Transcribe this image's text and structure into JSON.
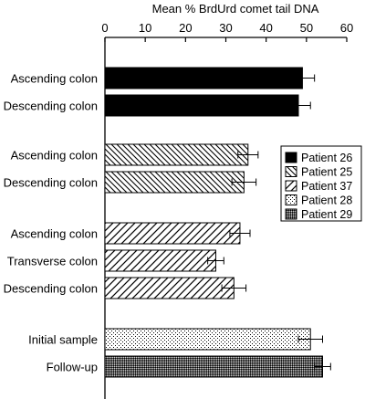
{
  "chart_data": {
    "type": "bar",
    "orientation": "horizontal",
    "title": "Mean % BrdUrd comet tail DNA",
    "xlim": [
      0,
      60
    ],
    "xticks": [
      0,
      10,
      20,
      30,
      40,
      50,
      60
    ],
    "x_axis_position": "top",
    "grid": false,
    "legend_position": "right",
    "series": [
      {
        "name": "Patient 26",
        "pattern": "solid-black"
      },
      {
        "name": "Patient 25",
        "pattern": "diagonal-backslash"
      },
      {
        "name": "Patient 37",
        "pattern": "diagonal-slash"
      },
      {
        "name": "Patient 28",
        "pattern": "sparse-dots"
      },
      {
        "name": "Patient 29",
        "pattern": "dense-dots"
      }
    ],
    "bars": [
      {
        "label": "Ascending colon",
        "series": 0,
        "value": 49,
        "error": 3
      },
      {
        "label": "Descending colon",
        "series": 0,
        "value": 48,
        "error": 3
      },
      {
        "label": "Ascending colon",
        "series": 1,
        "value": 35.5,
        "error": 2.5
      },
      {
        "label": "Descending colon",
        "series": 1,
        "value": 34.5,
        "error": 3
      },
      {
        "label": "Ascending colon",
        "series": 2,
        "value": 33.5,
        "error": 2.5
      },
      {
        "label": "Transverse colon",
        "series": 2,
        "value": 27.5,
        "error": 2
      },
      {
        "label": "Descending colon",
        "series": 2,
        "value": 32,
        "error": 3
      },
      {
        "label": "Initial sample",
        "series": 3,
        "value": 51,
        "error": 3
      },
      {
        "label": "Follow-up",
        "series": 4,
        "value": 54,
        "error": 2
      }
    ]
  }
}
